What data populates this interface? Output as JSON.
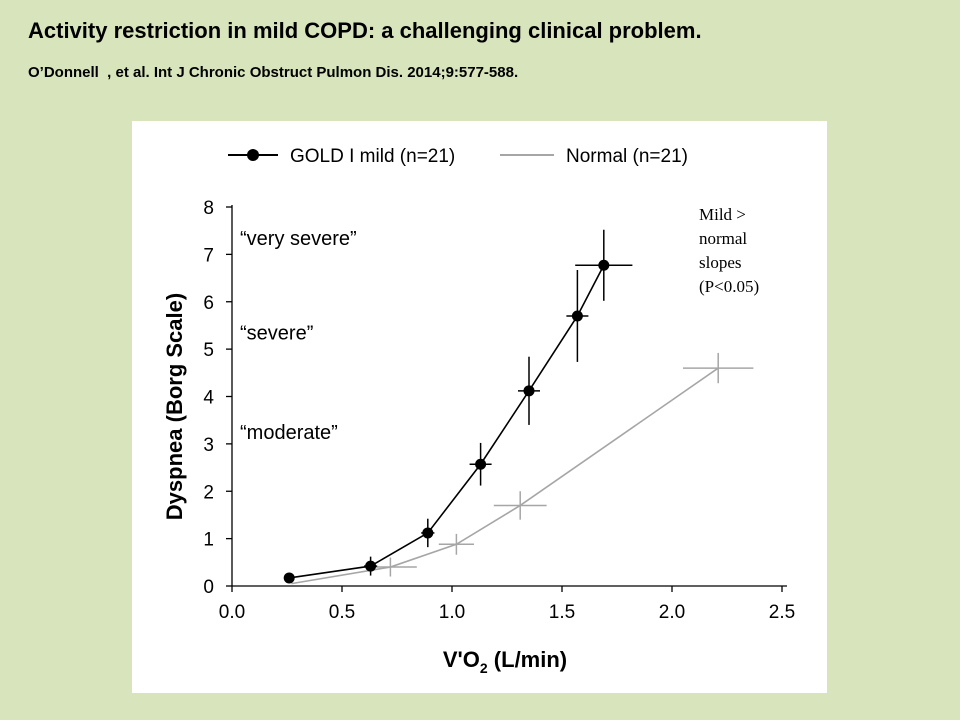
{
  "slide": {
    "title": "Activity restriction in mild COPD: a challenging clinical problem.",
    "citation": "O’Donnell  , et al. Int J Chronic Obstruct Pulmon Dis. 2014;9:577-588."
  },
  "chart_data": {
    "type": "line",
    "title": "",
    "xlabel_main": "V'O",
    "xlabel_sub": "2",
    "xlabel_unit": " (L/min)",
    "ylabel": "Dyspnea (Borg Scale)",
    "xlim": [
      0.0,
      2.5
    ],
    "ylim": [
      0,
      8
    ],
    "x_ticks": [
      "0.0",
      "0.5",
      "1.0",
      "1.5",
      "2.0",
      "2.5"
    ],
    "y_ticks": [
      "0",
      "1",
      "2",
      "3",
      "4",
      "5",
      "6",
      "7",
      "8"
    ],
    "grid": false,
    "legend_position": "top",
    "series": [
      {
        "name": "GOLD I mild (n=21)",
        "color": "#000000",
        "marker": "filled-circle",
        "points": [
          {
            "x": 0.26,
            "y": 0.17,
            "xerr": 0.0,
            "yerr": 0.0
          },
          {
            "x": 0.63,
            "y": 0.42,
            "xerr": 0.03,
            "yerr": 0.2
          },
          {
            "x": 0.89,
            "y": 1.12,
            "xerr": 0.03,
            "yerr": 0.3
          },
          {
            "x": 1.13,
            "y": 2.57,
            "xerr": 0.05,
            "yerr": 0.45
          },
          {
            "x": 1.35,
            "y": 4.12,
            "xerr": 0.05,
            "yerr": 0.72
          },
          {
            "x": 1.57,
            "y": 5.7,
            "xerr": 0.05,
            "yerr": 0.97
          },
          {
            "x": 1.69,
            "y": 6.77,
            "xerr": 0.13,
            "yerr": 0.75
          }
        ]
      },
      {
        "name": "Normal (n=21)",
        "color": "#a6a6a6",
        "marker": "none",
        "points": [
          {
            "x": 0.27,
            "y": 0.05,
            "xerr": 0.0,
            "yerr": 0.0
          },
          {
            "x": 0.72,
            "y": 0.4,
            "xerr": 0.12,
            "yerr": 0.2
          },
          {
            "x": 1.02,
            "y": 0.88,
            "xerr": 0.08,
            "yerr": 0.22
          },
          {
            "x": 1.31,
            "y": 1.7,
            "xerr": 0.12,
            "yerr": 0.3
          },
          {
            "x": 2.21,
            "y": 4.6,
            "xerr": 0.16,
            "yerr": 0.32
          }
        ]
      }
    ],
    "annotations": [
      {
        "text": "“very severe”",
        "y": 7.2
      },
      {
        "text": "“severe”",
        "y": 5.2
      },
      {
        "text": "“moderate”",
        "y": 3.1
      }
    ],
    "significance_note": [
      "Mild >",
      "normal",
      "slopes",
      "(P<0.05)"
    ]
  }
}
